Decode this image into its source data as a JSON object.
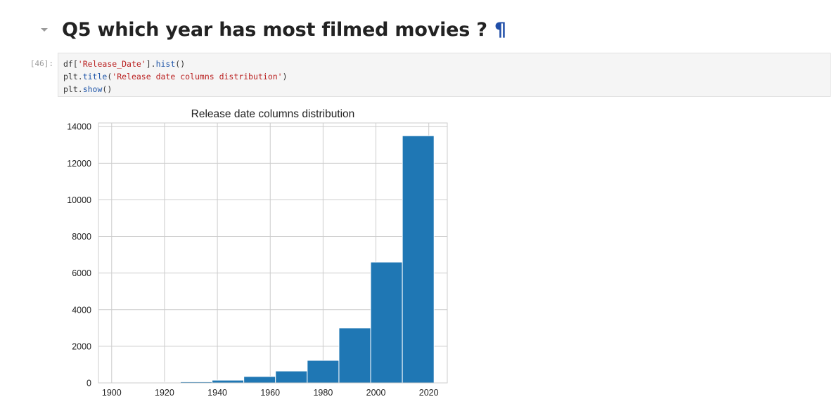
{
  "markdown_cell": {
    "heading": "Q5 which year has most filmed movies ?",
    "anchor": "¶"
  },
  "code_cell": {
    "prompt": "[46]:",
    "lines": [
      [
        {
          "t": "df[",
          "c": "plain"
        },
        {
          "t": "'Release_Date'",
          "c": "str"
        },
        {
          "t": "].",
          "c": "plain"
        },
        {
          "t": "hist",
          "c": "fn"
        },
        {
          "t": "()",
          "c": "plain"
        }
      ],
      [
        {
          "t": "plt.",
          "c": "plain"
        },
        {
          "t": "title",
          "c": "fn"
        },
        {
          "t": "(",
          "c": "plain"
        },
        {
          "t": "'Release date columns distribution'",
          "c": "str"
        },
        {
          "t": ")",
          "c": "plain"
        }
      ],
      [
        {
          "t": "plt.",
          "c": "plain"
        },
        {
          "t": "show",
          "c": "fn"
        },
        {
          "t": "()",
          "c": "plain"
        }
      ]
    ]
  },
  "chart_data": {
    "type": "bar",
    "title": "Release date columns distribution",
    "xlabel": "",
    "ylabel": "",
    "xlim": [
      1895,
      2027
    ],
    "ylim": [
      0,
      14200
    ],
    "xticks": [
      "1900",
      "1920",
      "1940",
      "1960",
      "1980",
      "2000",
      "2020"
    ],
    "xtick_values": [
      1900,
      1920,
      1940,
      1960,
      1980,
      2000,
      2020
    ],
    "yticks": [
      "0",
      "2000",
      "4000",
      "6000",
      "8000",
      "10000",
      "12000",
      "14000"
    ],
    "ytick_values": [
      0,
      2000,
      4000,
      6000,
      8000,
      10000,
      12000,
      14000
    ],
    "grid": true,
    "bar_color": "#1f77b4",
    "bins": [
      {
        "x0": 1902,
        "x1": 1914,
        "value": 0
      },
      {
        "x0": 1914,
        "x1": 1926,
        "value": 10
      },
      {
        "x0": 1926,
        "x1": 1938,
        "value": 60
      },
      {
        "x0": 1938,
        "x1": 1950,
        "value": 150
      },
      {
        "x0": 1950,
        "x1": 1962,
        "value": 350
      },
      {
        "x0": 1962,
        "x1": 1974,
        "value": 650
      },
      {
        "x0": 1974,
        "x1": 1986,
        "value": 1230
      },
      {
        "x0": 1986,
        "x1": 1998,
        "value": 3000
      },
      {
        "x0": 1998,
        "x1": 2010,
        "value": 6600
      },
      {
        "x0": 2010,
        "x1": 2022,
        "value": 13500
      }
    ]
  }
}
